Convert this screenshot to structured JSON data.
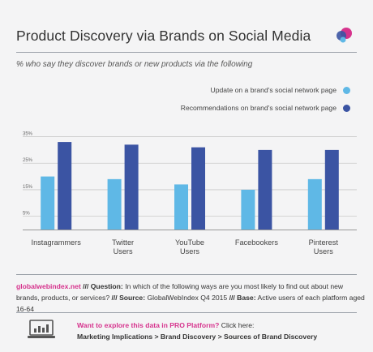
{
  "title": "Product Discovery via Brands on Social Media",
  "subtitle": "% who say they discover brands or new products via the following",
  "colors": {
    "series1": "#5fb8e6",
    "series2": "#3b54a3",
    "pink": "#d6338d",
    "grid": "#c9c9c9"
  },
  "chart_data": {
    "type": "bar",
    "categories": [
      [
        "Instagrammers"
      ],
      [
        "Twitter",
        "Users"
      ],
      [
        "YouTube",
        "Users"
      ],
      [
        "Facebookers"
      ],
      [
        "Pinterest",
        "Users"
      ]
    ],
    "series": [
      {
        "name": "Update on a brand's social network page",
        "values": [
          20,
          19,
          17,
          15,
          19
        ]
      },
      {
        "name": "Recommendations on brand's social network page",
        "values": [
          33,
          32,
          31,
          30,
          30
        ]
      }
    ],
    "yticks": [
      "5%",
      "15%",
      "25%",
      "35%"
    ],
    "ylim": [
      0,
      37
    ],
    "grid": true,
    "legend": "top-right"
  },
  "footer": {
    "source_site": "globalwebindex.net",
    "question_label": "/// Question:",
    "question_text": "In which of the following ways are you most likely to find out about new brands, products, or services?",
    "source_label": "///  Source:",
    "source_text": "GlobalWebIndex Q4 2015",
    "base_label": "/// Base:",
    "base_text": "Active users of each platform aged 16-64"
  },
  "pro": {
    "question": "Want to explore this data in PRO Platform?",
    "click": " Click here:",
    "path": "Marketing Implications > Brand Discovery > Sources of Brand Discovery"
  }
}
